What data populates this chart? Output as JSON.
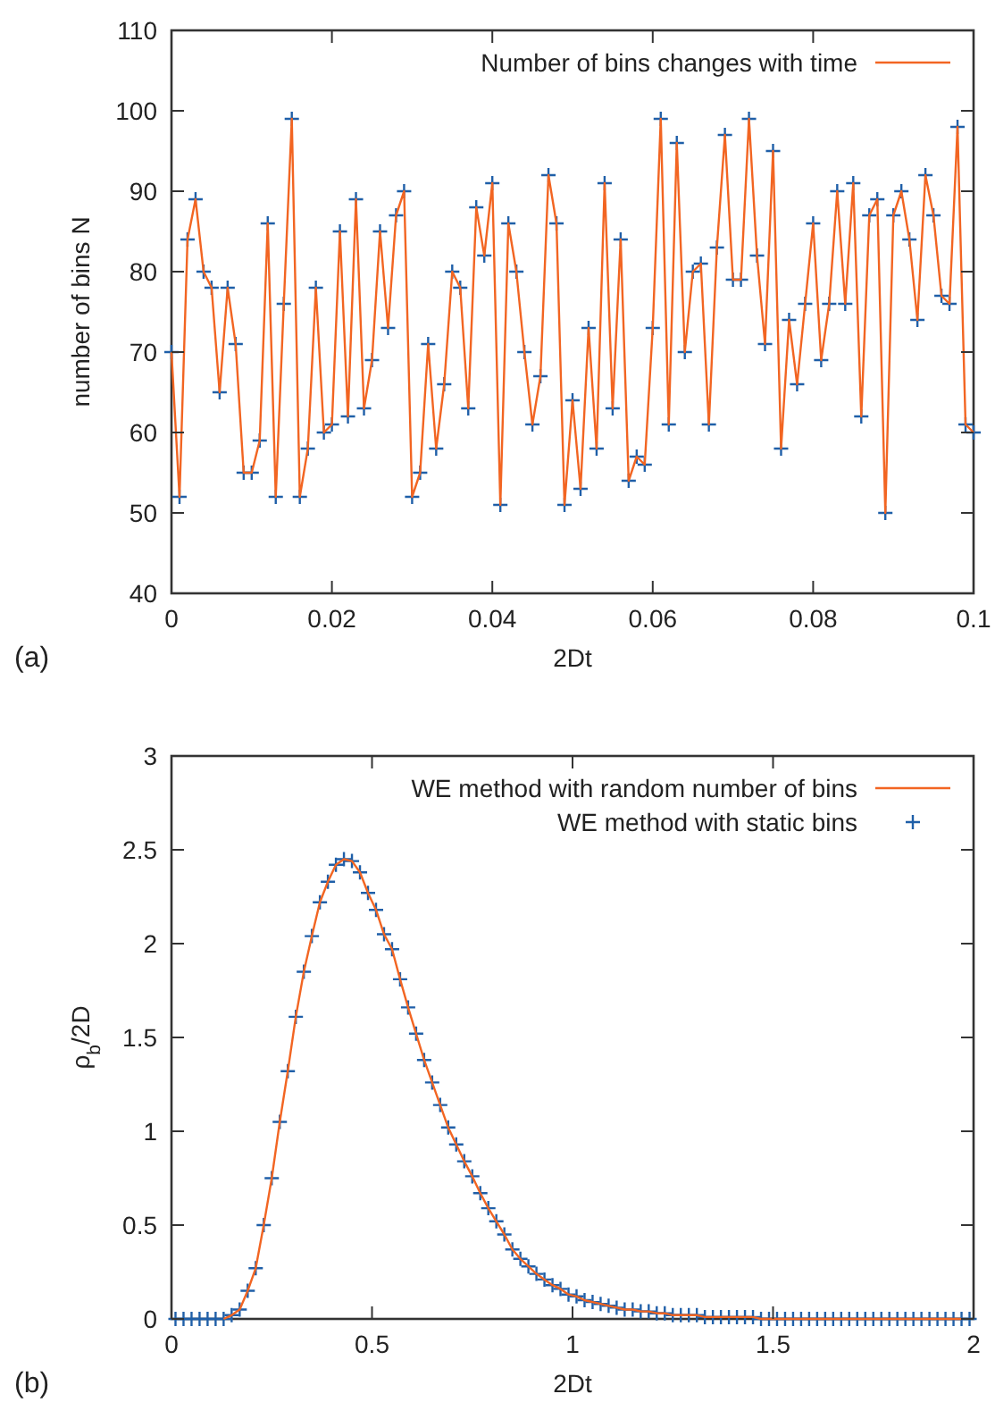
{
  "chart_data": [
    {
      "type": "line",
      "xlabel": "2Dt",
      "ylabel": "number of bins N",
      "annotations": [
        "(a)"
      ],
      "xlim": [
        0,
        0.1
      ],
      "ylim": [
        40,
        110
      ],
      "xticks": [
        0,
        0.02,
        0.04,
        0.06,
        0.08,
        0.1
      ],
      "yticks": [
        40,
        50,
        60,
        70,
        80,
        90,
        100,
        110
      ],
      "legend": "top right",
      "grid": false,
      "x": [
        0,
        0.001,
        0.002,
        0.003,
        0.004,
        0.005,
        0.006,
        0.007,
        0.008,
        0.009,
        0.01,
        0.011,
        0.012,
        0.013,
        0.014,
        0.015,
        0.016,
        0.017,
        0.018,
        0.019,
        0.02,
        0.021,
        0.022,
        0.023,
        0.024,
        0.025,
        0.026,
        0.027,
        0.028,
        0.029,
        0.03,
        0.031,
        0.032,
        0.033,
        0.034,
        0.035,
        0.036,
        0.037,
        0.038,
        0.039,
        0.04,
        0.041,
        0.042,
        0.043,
        0.044,
        0.045,
        0.046,
        0.047,
        0.048,
        0.049,
        0.05,
        0.051,
        0.052,
        0.053,
        0.054,
        0.055,
        0.056,
        0.057,
        0.058,
        0.059,
        0.06,
        0.061,
        0.062,
        0.063,
        0.064,
        0.065,
        0.066,
        0.067,
        0.068,
        0.069,
        0.07,
        0.071,
        0.072,
        0.073,
        0.074,
        0.075,
        0.076,
        0.077,
        0.078,
        0.079,
        0.08,
        0.081,
        0.082,
        0.083,
        0.084,
        0.085,
        0.086,
        0.087,
        0.088,
        0.089,
        0.09,
        0.091,
        0.092,
        0.093,
        0.094,
        0.095,
        0.096,
        0.097,
        0.098,
        0.099,
        0.1
      ],
      "series": [
        {
          "name": "Number of bins changes with time",
          "type": "line",
          "color": "#f26522",
          "values": [
            70,
            52,
            84,
            89,
            80,
            78,
            65,
            78,
            71,
            55,
            55,
            59,
            86,
            52,
            76,
            99,
            52,
            58,
            78,
            60,
            61,
            85,
            62,
            89,
            63,
            69,
            85,
            73,
            87,
            90,
            52,
            55,
            71,
            58,
            66,
            80,
            78,
            63,
            88,
            82,
            91,
            51,
            86,
            80,
            70,
            61,
            67,
            92,
            86,
            51,
            64,
            53,
            73,
            58,
            91,
            63,
            84,
            54,
            57,
            56,
            73,
            99,
            61,
            96,
            70,
            80,
            81,
            61,
            83,
            97,
            79,
            79,
            99,
            82,
            71,
            95,
            58,
            74,
            66,
            76,
            86,
            69,
            76,
            90,
            76,
            91,
            62,
            87,
            89,
            50,
            87,
            90,
            84,
            74,
            92,
            87,
            77,
            76,
            98,
            61,
            60
          ]
        },
        {
          "type": "scatter",
          "marker": "cross",
          "color": "#1f5fa8",
          "values": [
            70,
            52,
            84,
            89,
            80,
            78,
            65,
            78,
            71,
            55,
            55,
            59,
            86,
            52,
            76,
            99,
            52,
            58,
            78,
            60,
            61,
            85,
            62,
            89,
            63,
            69,
            85,
            73,
            87,
            90,
            52,
            55,
            71,
            58,
            66,
            80,
            78,
            63,
            88,
            82,
            91,
            51,
            86,
            80,
            70,
            61,
            67,
            92,
            86,
            51,
            64,
            53,
            73,
            58,
            91,
            63,
            84,
            54,
            57,
            56,
            73,
            99,
            61,
            96,
            70,
            80,
            81,
            61,
            83,
            97,
            79,
            79,
            99,
            82,
            71,
            95,
            58,
            74,
            66,
            76,
            86,
            69,
            76,
            90,
            76,
            91,
            62,
            87,
            89,
            50,
            87,
            90,
            84,
            74,
            92,
            87,
            77,
            76,
            98,
            61,
            60
          ]
        }
      ]
    },
    {
      "type": "line",
      "xlabel": "2Dt",
      "ylabel": "ρ$_{b}$/2D",
      "annotations": [
        "(b)"
      ],
      "xlim": [
        0,
        2
      ],
      "ylim": [
        0,
        3
      ],
      "xticks": [
        0,
        0.5,
        1,
        1.5,
        2
      ],
      "yticks": [
        0,
        0.5,
        1,
        1.5,
        2,
        2.5,
        3
      ],
      "legend": "top right",
      "grid": false,
      "x": [
        0.01,
        0.03,
        0.05,
        0.07,
        0.09,
        0.11,
        0.13,
        0.15,
        0.17,
        0.19,
        0.21,
        0.23,
        0.25,
        0.27,
        0.29,
        0.31,
        0.33,
        0.35,
        0.37,
        0.39,
        0.41,
        0.43,
        0.45,
        0.47,
        0.49,
        0.51,
        0.53,
        0.55,
        0.57,
        0.59,
        0.61,
        0.63,
        0.65,
        0.67,
        0.69,
        0.71,
        0.73,
        0.75,
        0.77,
        0.79,
        0.81,
        0.83,
        0.85,
        0.87,
        0.89,
        0.91,
        0.93,
        0.95,
        0.97,
        0.99,
        1.01,
        1.03,
        1.05,
        1.07,
        1.09,
        1.11,
        1.13,
        1.15,
        1.17,
        1.19,
        1.21,
        1.23,
        1.25,
        1.27,
        1.29,
        1.31,
        1.33,
        1.35,
        1.37,
        1.39,
        1.41,
        1.43,
        1.45,
        1.47,
        1.49,
        1.51,
        1.53,
        1.55,
        1.57,
        1.59,
        1.61,
        1.63,
        1.65,
        1.67,
        1.69,
        1.71,
        1.73,
        1.75,
        1.77,
        1.79,
        1.81,
        1.83,
        1.85,
        1.87,
        1.89,
        1.91,
        1.93,
        1.95,
        1.97,
        1.99
      ],
      "series": [
        {
          "name": "WE method with random number of bins",
          "type": "line",
          "color": "#f26522",
          "values": [
            null,
            null,
            null,
            null,
            null,
            null,
            0,
            0.02,
            0.05,
            0.15,
            0.27,
            0.5,
            0.75,
            1.05,
            1.32,
            1.61,
            1.85,
            2.04,
            2.22,
            2.33,
            2.42,
            2.45,
            2.44,
            2.38,
            2.27,
            2.18,
            2.05,
            1.97,
            1.81,
            1.66,
            1.52,
            1.38,
            1.26,
            1.14,
            1.02,
            0.93,
            0.84,
            0.76,
            0.67,
            0.59,
            0.52,
            0.45,
            0.37,
            0.32,
            0.28,
            0.24,
            0.21,
            0.18,
            0.16,
            0.13,
            0.12,
            0.1,
            0.09,
            0.08,
            0.07,
            0.06,
            0.05,
            0.05,
            0.04,
            0.04,
            0.03,
            0.03,
            0.02,
            0.02,
            0.02,
            0.02,
            0.01,
            0.01,
            0.01,
            0.01,
            0.01,
            0.01,
            0.01,
            0,
            0,
            0,
            0,
            0,
            0,
            0,
            0,
            0,
            0,
            0,
            0,
            0,
            0,
            0,
            0,
            0,
            0,
            0,
            0,
            0,
            0,
            0,
            0,
            0,
            0,
            null
          ]
        },
        {
          "name": "WE method with static bins",
          "type": "scatter",
          "marker": "cross",
          "color": "#1f5fa8",
          "values": [
            0,
            0,
            0,
            0,
            0,
            0,
            0,
            0.02,
            0.05,
            0.15,
            0.27,
            0.5,
            0.75,
            1.05,
            1.32,
            1.61,
            1.85,
            2.04,
            2.22,
            2.33,
            2.42,
            2.45,
            2.44,
            2.38,
            2.27,
            2.18,
            2.05,
            1.97,
            1.81,
            1.66,
            1.52,
            1.38,
            1.26,
            1.14,
            1.02,
            0.93,
            0.84,
            0.76,
            0.67,
            0.59,
            0.52,
            0.45,
            0.37,
            0.32,
            0.28,
            0.24,
            0.21,
            0.18,
            0.16,
            0.13,
            0.12,
            0.1,
            0.09,
            0.08,
            0.07,
            0.06,
            0.05,
            0.05,
            0.04,
            0.04,
            0.03,
            0.03,
            0.02,
            0.02,
            0.02,
            0.02,
            0.01,
            0.01,
            0.01,
            0.01,
            0.01,
            0.01,
            0.01,
            0,
            0,
            0,
            0,
            0,
            0,
            0,
            0,
            0,
            0,
            0,
            0,
            0,
            0,
            0,
            0,
            0,
            0,
            0,
            0,
            0,
            0,
            0,
            0,
            0,
            0,
            0
          ]
        }
      ]
    }
  ]
}
